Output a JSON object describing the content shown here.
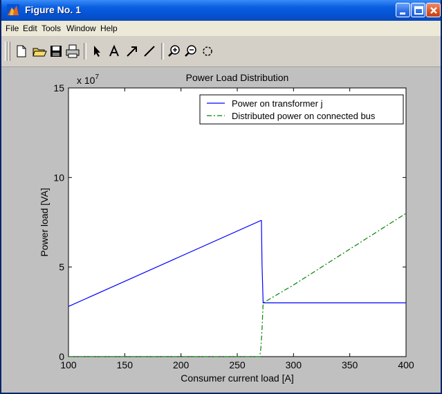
{
  "window": {
    "title": "Figure No. 1"
  },
  "menu": [
    {
      "label": "File"
    },
    {
      "label": "Edit"
    },
    {
      "label": "Tools"
    },
    {
      "label": "Window"
    },
    {
      "label": "Help"
    }
  ],
  "toolbar": {
    "tools": [
      "new-file-icon",
      "open-folder-icon",
      "save-icon",
      "print-icon",
      "select-arrow-icon",
      "insert-text-icon",
      "insert-arrow-icon",
      "insert-line-icon",
      "zoom-in-icon",
      "zoom-out-icon",
      "rotate-3d-icon"
    ]
  },
  "colors": {
    "titlebar": "#0553d4",
    "series1": "#0000ff",
    "series2": "#008000"
  },
  "chart_data": {
    "type": "line",
    "title": "Power Load Distribution",
    "xlabel": "Consumer current load [A]",
    "ylabel": "Power load [VA]",
    "y_multiplier": "x 10",
    "y_exponent": "7",
    "xlim": [
      100,
      400
    ],
    "ylim": [
      0,
      15
    ],
    "xticks": [
      100,
      150,
      200,
      250,
      300,
      350,
      400
    ],
    "yticks": [
      0,
      5,
      10,
      15
    ],
    "xtick_labels": [
      "100",
      "150",
      "200",
      "250",
      "300",
      "350",
      "400"
    ],
    "ytick_labels": [
      "0",
      "5",
      "10",
      "15"
    ],
    "grid": false,
    "legend_position": "top-right",
    "series": [
      {
        "name": "Power on transformer j",
        "style": "solid",
        "color": "#0000ff",
        "x": [
          100,
          271,
          271.5,
          272,
          273,
          400
        ],
        "y": [
          2.8,
          7.6,
          7.6,
          5.2,
          3.0,
          3.0
        ]
      },
      {
        "name": "Distributed power on connected bus",
        "style": "dash-dot",
        "color": "#008000",
        "x": [
          100,
          270,
          271,
          272,
          273,
          300,
          350,
          400
        ],
        "y": [
          0,
          0,
          0.5,
          1.5,
          3.0,
          4.0,
          6.0,
          8.0
        ]
      }
    ]
  }
}
